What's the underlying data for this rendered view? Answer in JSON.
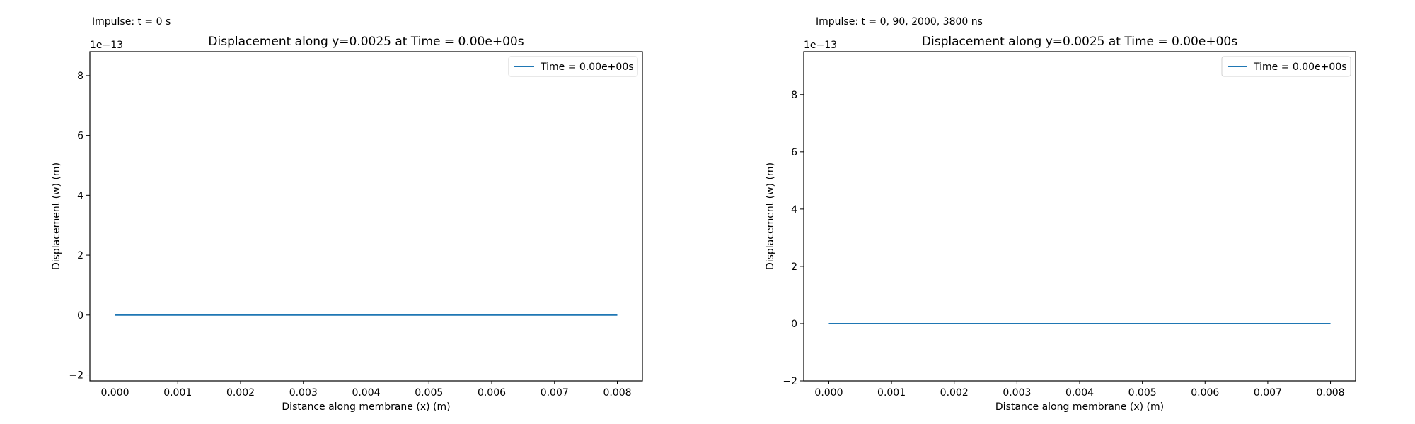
{
  "chart_data": [
    {
      "type": "line",
      "caption": "Impulse: t = 0 s",
      "title": "Displacement along y=0.0025 at Time = 0.00e+00s",
      "xlabel": "Distance along membrane (x) (m)",
      "ylabel": "Displacement (w) (m)",
      "offset_text": "1e−13",
      "xlim": [
        -0.0004,
        0.0084
      ],
      "ylim": [
        -2.2,
        8.8
      ],
      "xticks": [
        0,
        0.001,
        0.002,
        0.003,
        0.004,
        0.005,
        0.006,
        0.007,
        0.008
      ],
      "xtick_labels": [
        "0.000",
        "0.001",
        "0.002",
        "0.003",
        "0.004",
        "0.005",
        "0.006",
        "0.007",
        "0.008"
      ],
      "yticks": [
        -2,
        0,
        2,
        4,
        6,
        8
      ],
      "ytick_labels": [
        "−2",
        "0",
        "2",
        "4",
        "6",
        "8"
      ],
      "legend": "top-right",
      "grid": false,
      "series": [
        {
          "name": "Time = 0.00e+00s",
          "color": "#1f77b4",
          "x": [
            0,
            0.008
          ],
          "y": [
            0,
            0
          ]
        }
      ]
    },
    {
      "type": "line",
      "caption": "Impulse: t = 0, 90, 2000, 3800 ns",
      "title": "Displacement along y=0.0025 at Time = 0.00e+00s",
      "xlabel": "Distance along membrane (x) (m)",
      "ylabel": "Displacement (w) (m)",
      "offset_text": "1e−13",
      "xlim": [
        -0.0004,
        0.0084
      ],
      "ylim": [
        -2.0,
        9.5
      ],
      "xticks": [
        0,
        0.001,
        0.002,
        0.003,
        0.004,
        0.005,
        0.006,
        0.007,
        0.008
      ],
      "xtick_labels": [
        "0.000",
        "0.001",
        "0.002",
        "0.003",
        "0.004",
        "0.005",
        "0.006",
        "0.007",
        "0.008"
      ],
      "yticks": [
        -2,
        0,
        2,
        4,
        6,
        8
      ],
      "ytick_labels": [
        "−2",
        "0",
        "2",
        "4",
        "6",
        "8"
      ],
      "legend": "top-right",
      "grid": false,
      "series": [
        {
          "name": "Time = 0.00e+00s",
          "color": "#1f77b4",
          "x": [
            0,
            0.008
          ],
          "y": [
            0,
            0
          ]
        }
      ]
    }
  ]
}
